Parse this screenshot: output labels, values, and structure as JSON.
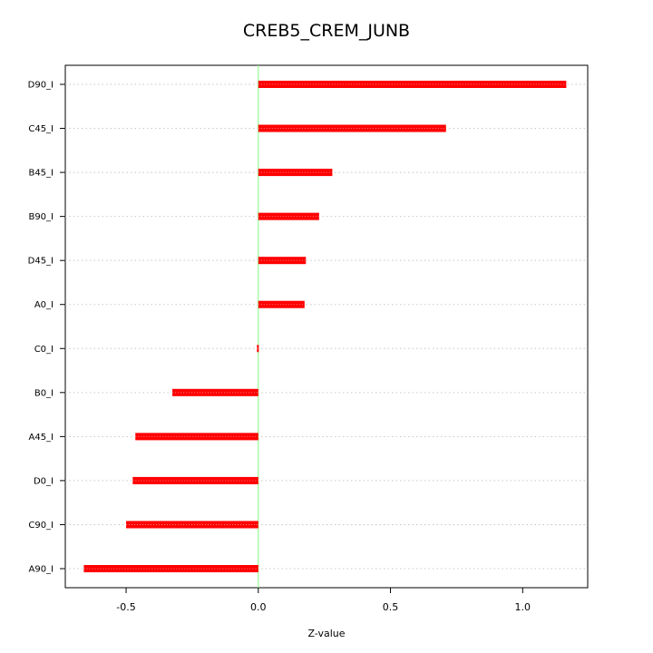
{
  "chart_data": {
    "type": "bar",
    "orientation": "horizontal",
    "title": "CREB5_CREM_JUNB",
    "xlabel": "Z-value",
    "ylabel": "",
    "categories": [
      "D90_I",
      "C45_I",
      "B45_I",
      "B90_I",
      "D45_I",
      "A0_I",
      "C0_I",
      "B0_I",
      "A45_I",
      "D0_I",
      "C90_I",
      "A90_I"
    ],
    "values": [
      1.165,
      0.71,
      0.28,
      0.23,
      0.18,
      0.175,
      -0.005,
      -0.325,
      -0.465,
      -0.475,
      -0.5,
      -0.66
    ],
    "xlim": [
      -0.73,
      1.246
    ],
    "xticks": [
      -0.5,
      0.0,
      0.5,
      1.0
    ],
    "xtick_labels": [
      "-0.5",
      "0.0",
      "0.5",
      "1.0"
    ],
    "reference_line": 0,
    "colors": {
      "bar": "#ff0000",
      "reference": "#80ff80",
      "grid": "#c8c8c8",
      "axis": "#000000"
    }
  }
}
